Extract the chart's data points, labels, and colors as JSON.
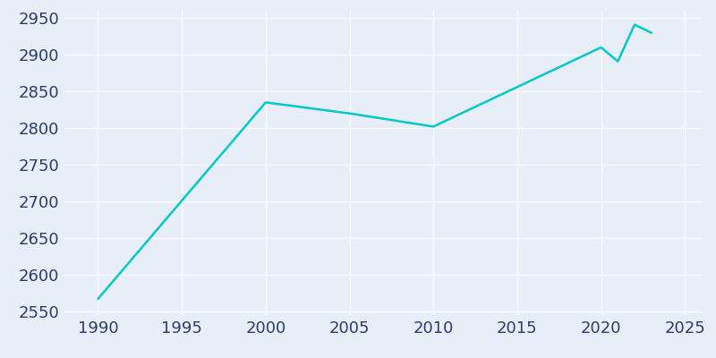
{
  "years": [
    1990,
    2000,
    2005,
    2010,
    2020,
    2021,
    2022,
    2023
  ],
  "population": [
    2567,
    2835,
    2820,
    2802,
    2910,
    2891,
    2941,
    2930
  ],
  "line_color": "#00C8C8",
  "background_color": "#E8EEF7",
  "grid_color": "#FFFFFF",
  "xlim": [
    1988,
    2026
  ],
  "ylim": [
    2545,
    2960
  ],
  "xticks": [
    1990,
    1995,
    2000,
    2005,
    2010,
    2015,
    2020,
    2025
  ],
  "yticks": [
    2550,
    2600,
    2650,
    2700,
    2750,
    2800,
    2850,
    2900,
    2950
  ],
  "tick_label_color": "#2D3B6E",
  "tick_fontsize": 13,
  "line_width": 1.8
}
